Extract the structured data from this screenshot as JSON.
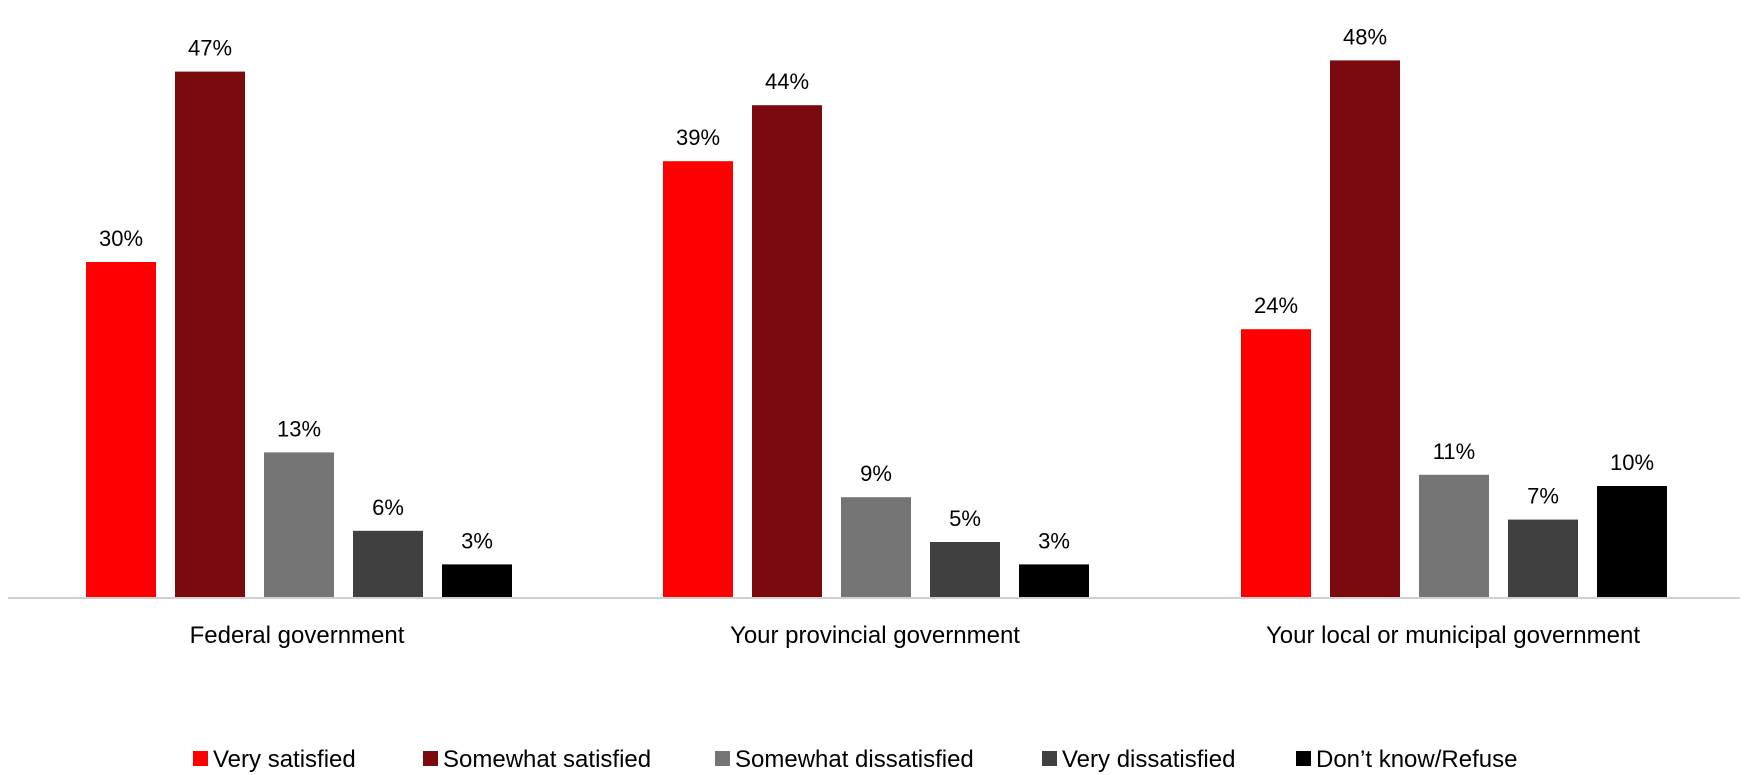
{
  "chart_data": {
    "type": "bar",
    "categories": [
      "Federal government",
      "Your provincial government",
      "Your local or municipal government"
    ],
    "series": [
      {
        "name": "Very satisfied",
        "color": "#ff0000",
        "values": [
          30,
          39,
          24
        ]
      },
      {
        "name": "Somewhat satisfied",
        "color": "#7b0a0e",
        "values": [
          47,
          44,
          48
        ]
      },
      {
        "name": "Somewhat dissatisfied",
        "color": "#757575",
        "values": [
          13,
          9,
          11
        ]
      },
      {
        "name": "Very dissatisfied",
        "color": "#404040",
        "values": [
          6,
          5,
          7
        ]
      },
      {
        "name": "Don’t know/Refuse",
        "color": "#000000",
        "values": [
          3,
          3,
          10
        ]
      }
    ],
    "value_suffix": "%",
    "ylim": [
      0,
      50
    ],
    "grid": false,
    "legend_position": "bottom"
  }
}
